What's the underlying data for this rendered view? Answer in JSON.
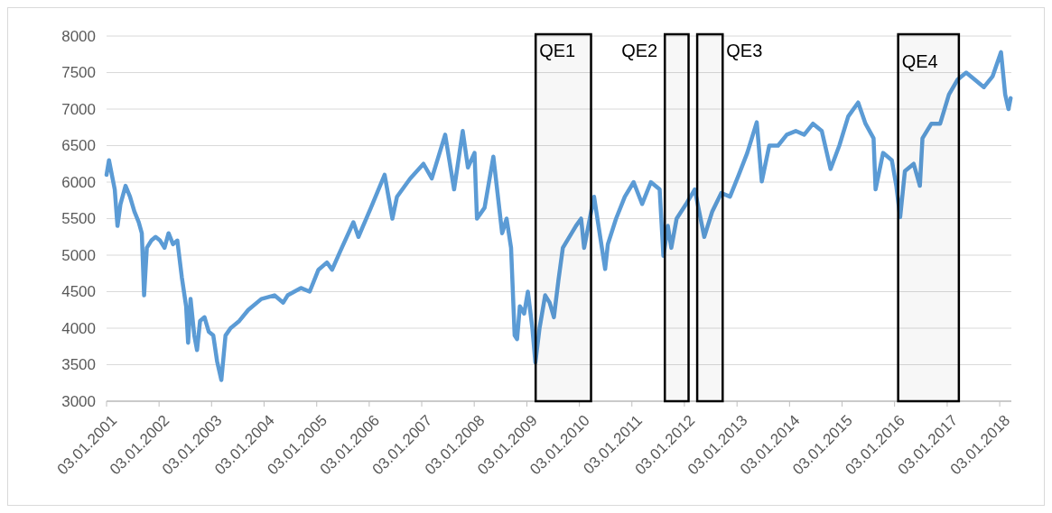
{
  "chart_data": {
    "type": "line",
    "x": [
      "2001-01-03",
      "2001-01-20",
      "2001-03-01",
      "2001-03-20",
      "2001-04-10",
      "2001-05-15",
      "2001-06-15",
      "2001-07-15",
      "2001-08-15",
      "2001-09-05",
      "2001-09-21",
      "2001-10-10",
      "2001-11-10",
      "2001-12-10",
      "2002-01-10",
      "2002-02-10",
      "2002-03-10",
      "2002-04-10",
      "2002-05-10",
      "2002-06-10",
      "2002-07-10",
      "2002-07-24",
      "2002-08-10",
      "2002-09-05",
      "2002-09-24",
      "2002-10-15",
      "2002-11-15",
      "2002-12-15",
      "2003-01-15",
      "2003-02-10",
      "2003-03-12",
      "2003-04-10",
      "2003-05-15",
      "2003-07-15",
      "2003-09-15",
      "2003-12-15",
      "2004-03-15",
      "2004-05-15",
      "2004-06-15",
      "2004-09-15",
      "2004-11-15",
      "2005-01-15",
      "2005-03-15",
      "2005-04-20",
      "2005-06-15",
      "2005-09-15",
      "2005-10-20",
      "2006-01-15",
      "2006-04-20",
      "2006-06-13",
      "2006-07-15",
      "2006-10-15",
      "2007-01-15",
      "2007-03-14",
      "2007-06-15",
      "2007-08-16",
      "2007-10-15",
      "2007-11-20",
      "2008-01-05",
      "2008-01-22",
      "2008-03-15",
      "2008-05-15",
      "2008-07-15",
      "2008-08-15",
      "2008-09-15",
      "2008-10-10",
      "2008-10-27",
      "2008-11-15",
      "2008-12-15",
      "2009-01-10",
      "2009-02-10",
      "2009-03-03",
      "2009-04-01",
      "2009-05-10",
      "2009-06-10",
      "2009-07-10",
      "2009-08-10",
      "2009-09-10",
      "2009-10-10",
      "2009-11-10",
      "2009-12-10",
      "2010-01-15",
      "2010-02-05",
      "2010-04-15",
      "2010-07-01",
      "2010-07-20",
      "2010-09-15",
      "2010-11-15",
      "2011-01-15",
      "2011-03-15",
      "2011-05-15",
      "2011-07-15",
      "2011-08-10",
      "2011-09-10",
      "2011-10-04",
      "2011-11-10",
      "2012-01-15",
      "2012-03-15",
      "2012-05-20",
      "2012-07-15",
      "2012-09-15",
      "2012-11-15",
      "2013-01-15",
      "2013-03-15",
      "2013-05-20",
      "2013-06-24",
      "2013-08-15",
      "2013-10-15",
      "2013-12-15",
      "2014-02-15",
      "2014-04-15",
      "2014-06-15",
      "2014-08-15",
      "2014-10-15",
      "2014-12-15",
      "2015-02-15",
      "2015-04-25",
      "2015-06-15",
      "2015-08-10",
      "2015-08-24",
      "2015-10-15",
      "2015-12-15",
      "2016-01-15",
      "2016-02-11",
      "2016-03-15",
      "2016-05-15",
      "2016-06-27",
      "2016-07-15",
      "2016-09-15",
      "2016-11-15",
      "2017-01-15",
      "2017-03-15",
      "2017-05-15",
      "2017-07-15",
      "2017-09-15",
      "2017-11-15",
      "2018-01-12",
      "2018-02-10",
      "2018-03-05",
      "2018-03-20"
    ],
    "series": [
      {
        "color": "#5b9bd5",
        "values": [
          6100,
          6300,
          5900,
          5400,
          5700,
          5950,
          5800,
          5600,
          5450,
          5300,
          4450,
          5100,
          5200,
          5250,
          5200,
          5100,
          5300,
          5150,
          5200,
          4700,
          4300,
          3800,
          4400,
          3900,
          3700,
          4100,
          4150,
          3950,
          3900,
          3550,
          3290,
          3900,
          4000,
          4100,
          4250,
          4400,
          4450,
          4350,
          4450,
          4550,
          4500,
          4800,
          4900,
          4800,
          5050,
          5450,
          5250,
          5650,
          6100,
          5500,
          5800,
          6050,
          6250,
          6050,
          6650,
          5900,
          6700,
          6200,
          6400,
          5500,
          5650,
          6350,
          5300,
          5500,
          5100,
          3900,
          3850,
          4300,
          4200,
          4500,
          4000,
          3530,
          4000,
          4450,
          4350,
          4150,
          4650,
          5100,
          5200,
          5300,
          5400,
          5500,
          5100,
          5800,
          4810,
          5150,
          5500,
          5800,
          6000,
          5700,
          6000,
          5900,
          4990,
          5400,
          5100,
          5500,
          5700,
          5900,
          5250,
          5600,
          5850,
          5800,
          6100,
          6400,
          6820,
          6010,
          6500,
          6500,
          6650,
          6700,
          6650,
          6800,
          6700,
          6180,
          6500,
          6900,
          7090,
          6800,
          6600,
          5900,
          6400,
          6300,
          5950,
          5520,
          6150,
          6250,
          5950,
          6600,
          6800,
          6800,
          7200,
          7400,
          7500,
          7400,
          7300,
          7450,
          7780,
          7200,
          7000,
          7150
        ]
      }
    ],
    "xlim": [
      "2001-01-03",
      "2018-03-25"
    ],
    "xticks": [
      {
        "value": "2001-01-03",
        "label": "03.01.2001"
      },
      {
        "value": "2002-01-03",
        "label": "03.01.2002"
      },
      {
        "value": "2003-01-03",
        "label": "03.01.2003"
      },
      {
        "value": "2004-01-03",
        "label": "03.01.2004"
      },
      {
        "value": "2005-01-03",
        "label": "03.01.2005"
      },
      {
        "value": "2006-01-03",
        "label": "03.01.2006"
      },
      {
        "value": "2007-01-03",
        "label": "03.01.2007"
      },
      {
        "value": "2008-01-03",
        "label": "03.01.2008"
      },
      {
        "value": "2009-01-03",
        "label": "03.01.2009"
      },
      {
        "value": "2010-01-03",
        "label": "03.01.2010"
      },
      {
        "value": "2011-01-03",
        "label": "03.01.2011"
      },
      {
        "value": "2012-01-03",
        "label": "03.01.2012"
      },
      {
        "value": "2013-01-03",
        "label": "03.01.2013"
      },
      {
        "value": "2014-01-03",
        "label": "03.01.2014"
      },
      {
        "value": "2015-01-03",
        "label": "03.01.2015"
      },
      {
        "value": "2016-01-03",
        "label": "03.01.2016"
      },
      {
        "value": "2017-01-03",
        "label": "03.01.2017"
      },
      {
        "value": "2018-01-03",
        "label": "03.01.2018"
      }
    ],
    "ylim": [
      3000,
      8000
    ],
    "yticks": [
      3000,
      3500,
      4000,
      4500,
      5000,
      5500,
      6000,
      6500,
      7000,
      7500,
      8000
    ],
    "grid": "y",
    "marker": "none",
    "line_style": "solid",
    "bands": [
      {
        "axis": "x",
        "from": "2009-03-05",
        "to": "2010-03-25",
        "label": "QE1",
        "color": "#000000"
      },
      {
        "axis": "x",
        "from": "2011-08-20",
        "to": "2012-02-01",
        "label": "QE2",
        "color": "#000000"
      },
      {
        "axis": "x",
        "from": "2012-04-01",
        "to": "2012-09-25",
        "label": "QE3",
        "color": "#000000"
      },
      {
        "axis": "x",
        "from": "2016-01-28",
        "to": "2017-03-25",
        "label": "QE4",
        "color": "#000000"
      }
    ]
  }
}
